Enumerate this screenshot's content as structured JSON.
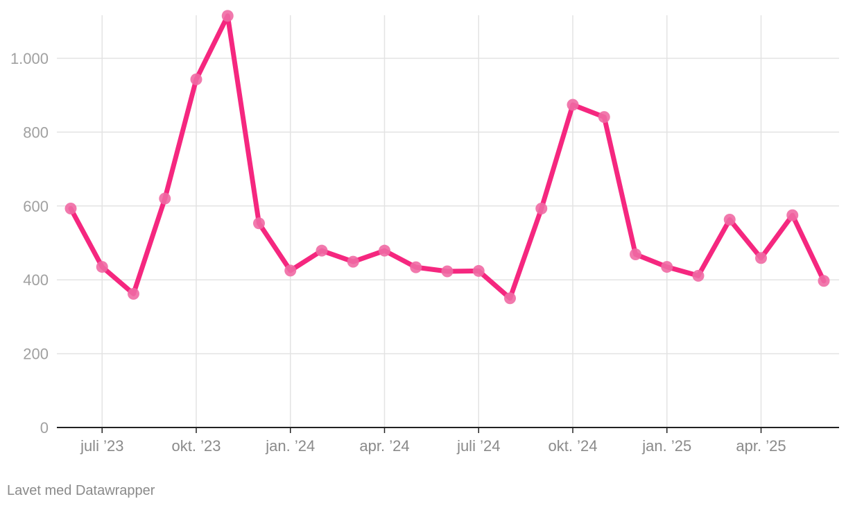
{
  "chart_data": {
    "type": "line",
    "title": "",
    "xlabel": "",
    "ylabel": "",
    "x": [
      "2023-06",
      "2023-07",
      "2023-08",
      "2023-09",
      "2023-10",
      "2023-11",
      "2023-12",
      "2024-01",
      "2024-02",
      "2024-03",
      "2024-04",
      "2024-05",
      "2024-06",
      "2024-07",
      "2024-08",
      "2024-09",
      "2024-10",
      "2024-11",
      "2024-12",
      "2025-01",
      "2025-02",
      "2025-03",
      "2025-04",
      "2025-05",
      "2025-06"
    ],
    "series": [
      {
        "values": [
          593,
          435,
          362,
          620,
          943,
          1115,
          553,
          425,
          479,
          449,
          479,
          434,
          423,
          424,
          350,
          593,
          874,
          841,
          469,
          435,
          411,
          563,
          459,
          575,
          397
        ]
      }
    ],
    "ylim": [
      0,
      1115
    ],
    "y_ticks": [
      {
        "value": 0,
        "label": "0"
      },
      {
        "value": 200,
        "label": "200"
      },
      {
        "value": 400,
        "label": "400"
      },
      {
        "value": 600,
        "label": "600"
      },
      {
        "value": 800,
        "label": "800"
      },
      {
        "value": 1000,
        "label": "1.000"
      }
    ],
    "x_ticks": [
      {
        "value": "2023-07",
        "label": "juli ’23"
      },
      {
        "value": "2023-10",
        "label": "okt. ’23"
      },
      {
        "value": "2024-01",
        "label": "jan. ’24"
      },
      {
        "value": "2024-04",
        "label": "apr. ’24"
      },
      {
        "value": "2024-07",
        "label": "juli ’24"
      },
      {
        "value": "2024-10",
        "label": "okt. ’24"
      },
      {
        "value": "2025-01",
        "label": "jan. ’25"
      },
      {
        "value": "2025-04",
        "label": "apr. ’25"
      }
    ],
    "grid": true,
    "colors": {
      "line": "#f5277f",
      "marker": "#f06aa4"
    }
  },
  "footer": {
    "credit": "Lavet med Datawrapper"
  }
}
